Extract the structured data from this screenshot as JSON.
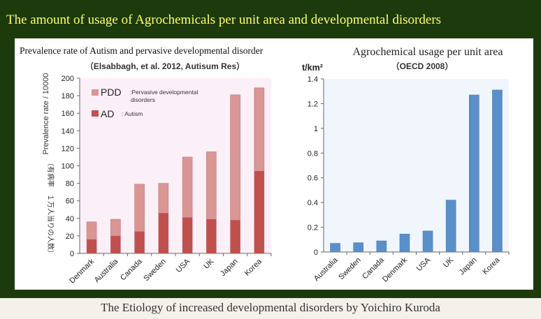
{
  "title": "The amount of usage of Agrochemicals per unit area and developmental disorders",
  "caption": "The Etiology of increased developmental disorders by Yoichiro Kuroda",
  "colors": {
    "background": "#1c3a0c",
    "title": "#ffff66",
    "ad": "#c0504d",
    "pdd": "#d99694",
    "agro": "#5b8fc9",
    "left_plot_bg": "#fcf0f8",
    "right_plot_bg": "#f0f6fc"
  },
  "chart_data": [
    {
      "type": "bar",
      "stacked": true,
      "title": "Prevalence rate of Autism and pervasive developmental disorder",
      "subtitle": "（Elsabbagh, et al. 2012, Autisum Res）",
      "ylabel": "Prevalence rate / 10000",
      "ylabel_jp": "（有病率　１万人当りの人数）",
      "ylim": [
        0,
        200
      ],
      "yticks": [
        "0",
        "20",
        "40",
        "60",
        "80",
        "100",
        "120",
        "140",
        "160",
        "180",
        "200"
      ],
      "categories": [
        "Denmark",
        "Australia",
        "Canada",
        "Sweden",
        "USA",
        "UK",
        "Japan",
        "Korea"
      ],
      "legend": [
        {
          "key": "PDD",
          "desc": ":Pervasive developmental",
          "desc2": "disorders"
        },
        {
          "key": "AD",
          "desc": ": Autism"
        }
      ],
      "legend_position": "top-left",
      "series": [
        {
          "name": "AD",
          "values": [
            16,
            20,
            25,
            46,
            41,
            39,
            38,
            94
          ]
        },
        {
          "name": "PDD",
          "totals": [
            36,
            39,
            79,
            80,
            110,
            116,
            181,
            189
          ]
        }
      ]
    },
    {
      "type": "bar",
      "title": "Agrochemical usage per unit area",
      "subtitle": "（OECD 2008）",
      "ylabel": "t/km²",
      "ylim": [
        0,
        1.4
      ],
      "yticks": [
        "0",
        "0.2",
        "0.4",
        "0.6",
        "0.8",
        "1",
        "1.2",
        "1.4"
      ],
      "categories": [
        "Australia",
        "Sweden",
        "Canada",
        "Denmark",
        "USA",
        "UK",
        "Japan",
        "Korea"
      ],
      "values": [
        0.07,
        0.075,
        0.09,
        0.145,
        0.17,
        0.42,
        1.27,
        1.31
      ]
    }
  ]
}
